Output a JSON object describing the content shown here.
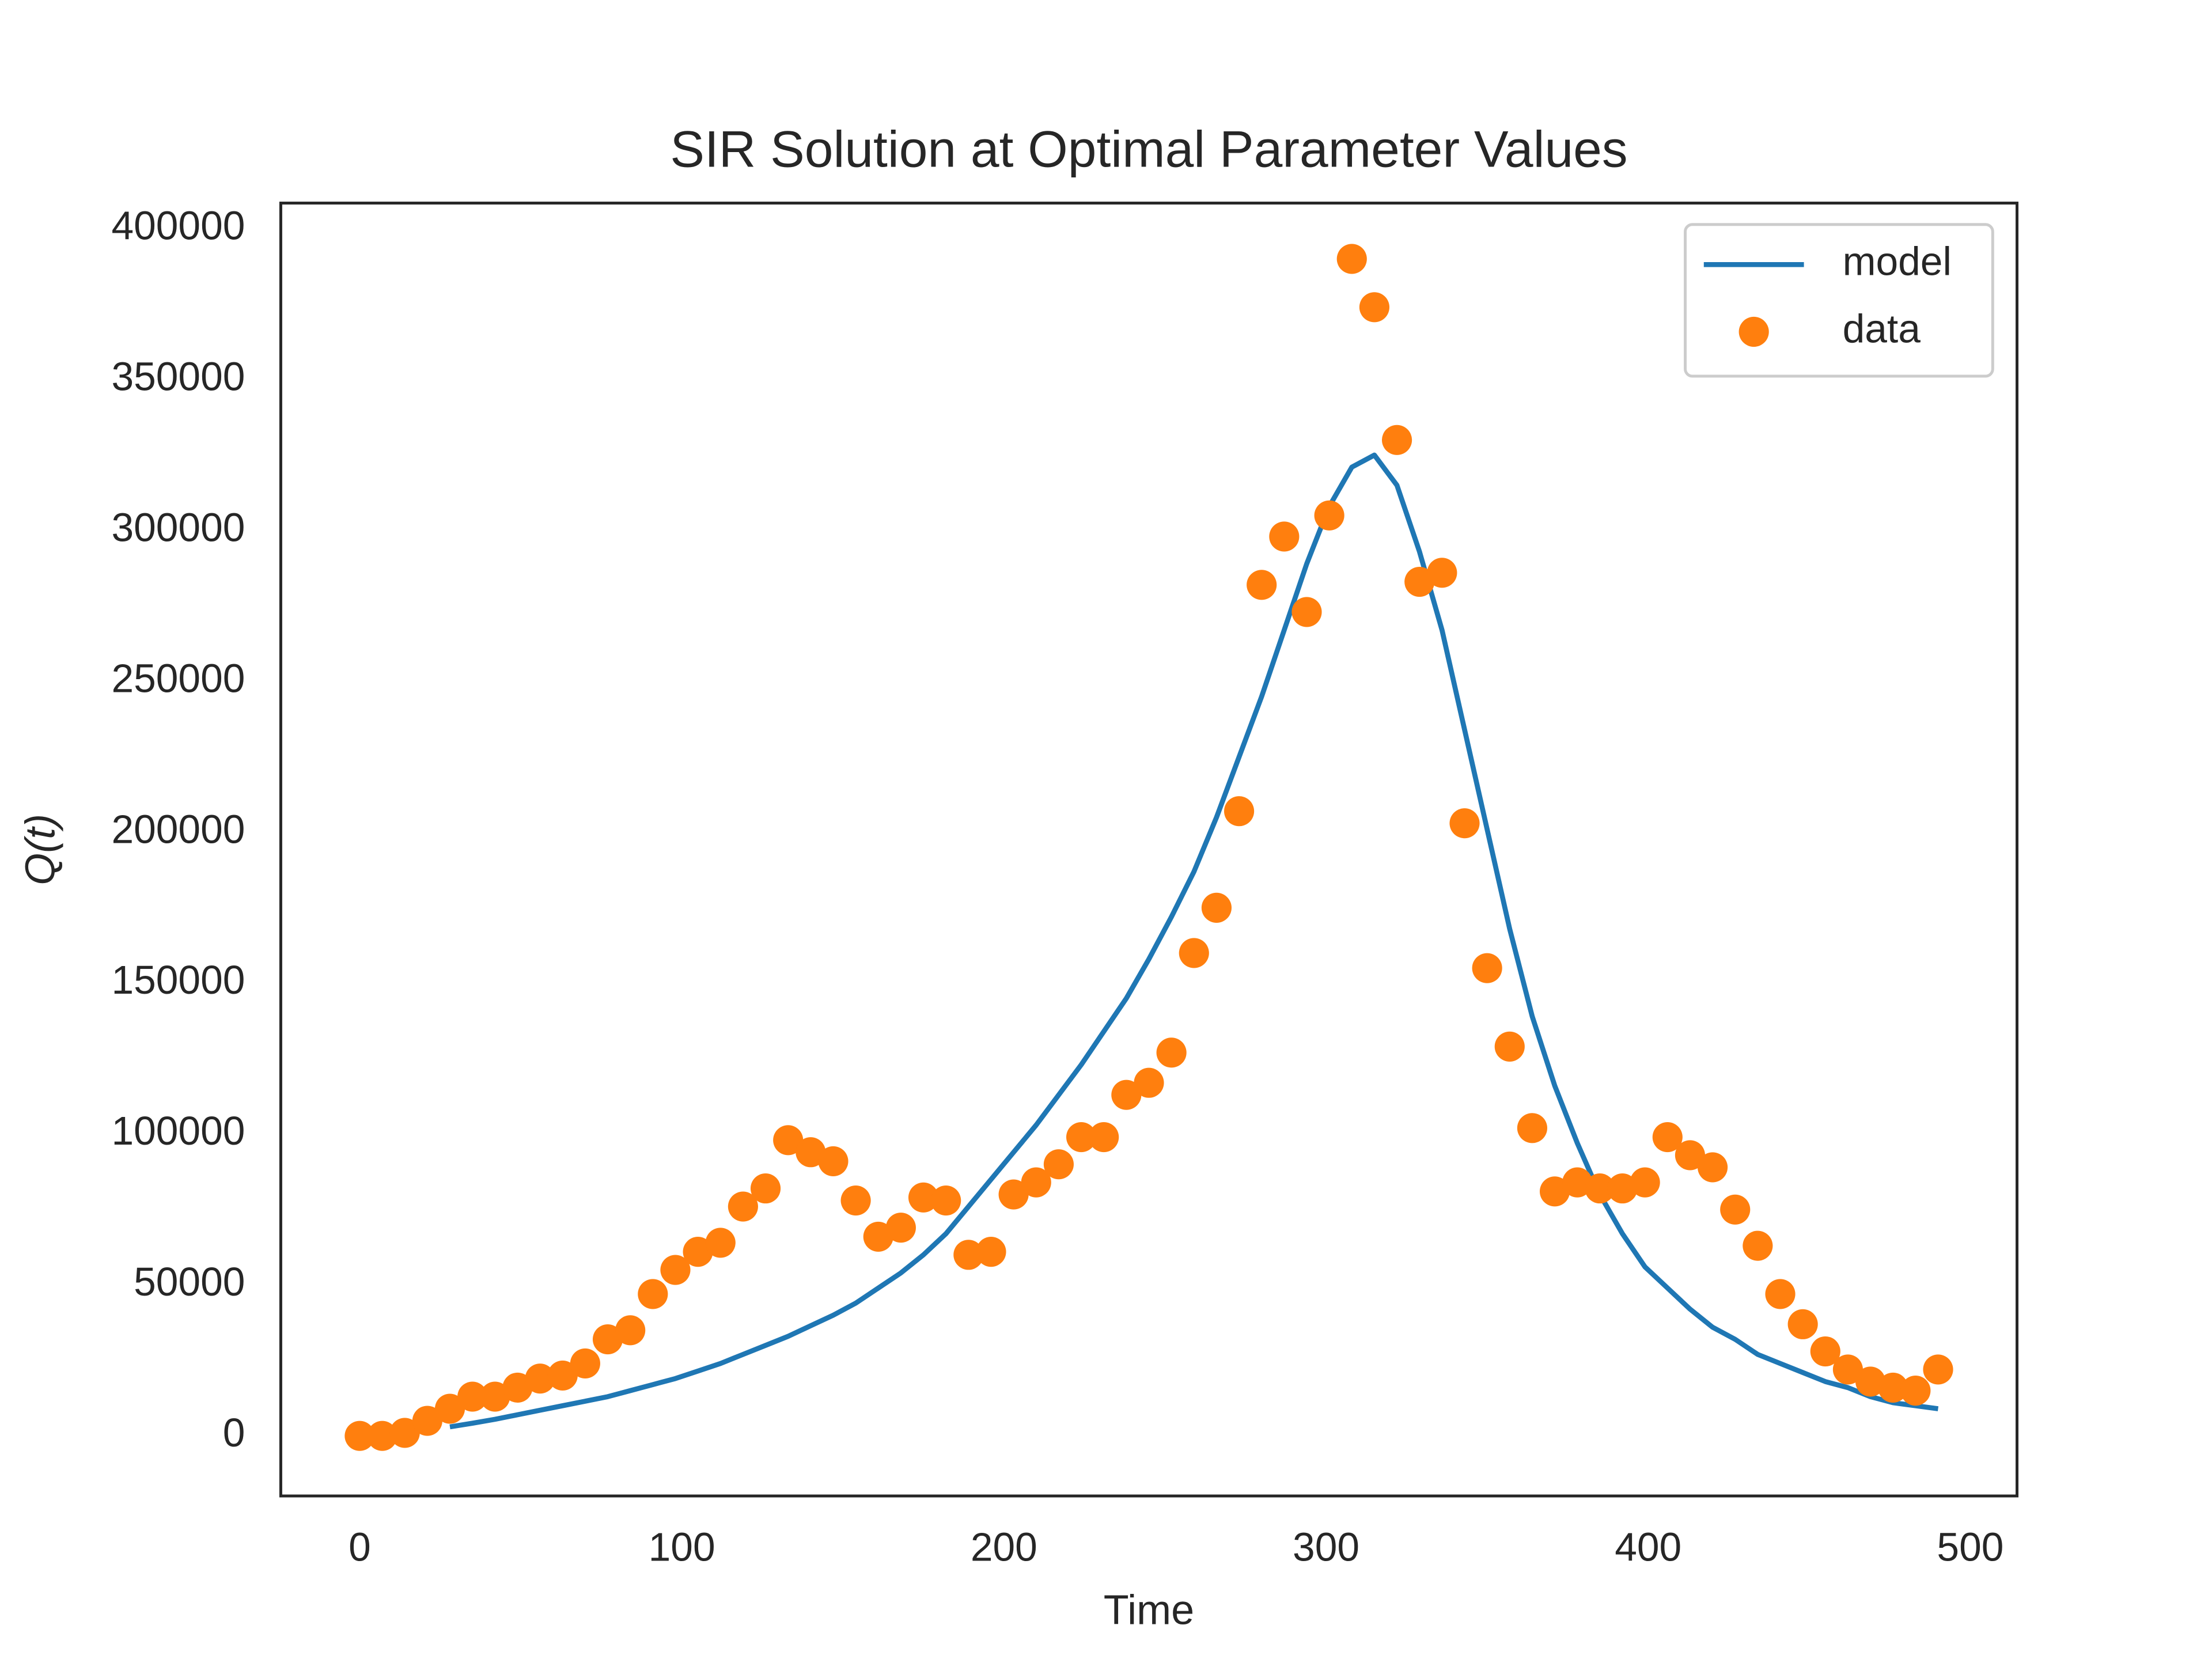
{
  "chart_data": {
    "type": "line",
    "title": "SIR Solution at Optimal Parameter Values",
    "x_label": "Time",
    "y_label": "Q(t)",
    "xlim": [
      -24.5,
      514.5
    ],
    "ylim": [
      -19900,
      408500
    ],
    "xticks": [
      0,
      100,
      200,
      300,
      400,
      500
    ],
    "yticks": [
      0,
      50000,
      100000,
      150000,
      200000,
      250000,
      300000,
      350000,
      400000
    ],
    "grid": false,
    "legend": "upper right",
    "series": [
      {
        "name": "model",
        "type": "line",
        "color": "#1f77b4",
        "x": [
          28,
          35,
          42,
          49,
          56,
          63,
          70,
          77,
          84,
          91,
          98,
          105,
          112,
          119,
          126,
          133,
          140,
          147,
          154,
          161,
          168,
          175,
          182,
          189,
          196,
          203,
          210,
          217,
          224,
          231,
          238,
          245,
          252,
          259,
          266,
          273,
          280,
          287,
          294,
          301,
          308,
          315,
          322,
          329,
          336,
          343,
          350,
          357,
          364,
          371,
          378,
          385,
          392,
          399,
          406,
          413,
          420,
          427,
          434,
          441,
          448,
          455,
          462,
          469,
          476,
          483,
          490
        ],
        "values": [
          3000,
          4200,
          5500,
          7000,
          8500,
          10000,
          11500,
          13000,
          15000,
          17000,
          19000,
          21500,
          24000,
          27000,
          30000,
          33000,
          36500,
          40000,
          44000,
          49000,
          54000,
          60000,
          67000,
          76000,
          85000,
          94000,
          103000,
          113000,
          123000,
          134000,
          145000,
          158000,
          172000,
          187000,
          205000,
          225000,
          245000,
          267000,
          289000,
          308000,
          321000,
          325000,
          315000,
          293000,
          267000,
          234000,
          201000,
          168000,
          139000,
          116000,
          97000,
          80000,
          67000,
          56000,
          49000,
          42000,
          36000,
          32000,
          27000,
          24000,
          21000,
          18000,
          16000,
          13000,
          11000,
          10000,
          9000
        ]
      },
      {
        "name": "data",
        "type": "scatter",
        "color": "#ff7f0e",
        "x": [
          0,
          7,
          14,
          21,
          28,
          35,
          42,
          49,
          56,
          63,
          70,
          77,
          84,
          91,
          98,
          105,
          112,
          119,
          126,
          133,
          140,
          147,
          154,
          161,
          168,
          175,
          182,
          189,
          196,
          203,
          210,
          217,
          224,
          231,
          238,
          245,
          252,
          259,
          266,
          273,
          280,
          287,
          294,
          301,
          308,
          315,
          322,
          329,
          336,
          343,
          350,
          357,
          364,
          371,
          378,
          385,
          392,
          399,
          406,
          413,
          420,
          427,
          434,
          441,
          448,
          455,
          462,
          469,
          476,
          483,
          490
        ],
        "values": [
          0,
          0,
          1000,
          5000,
          9000,
          13000,
          13000,
          16000,
          19000,
          20000,
          24000,
          32000,
          35000,
          47000,
          55000,
          61000,
          64000,
          76000,
          82000,
          98000,
          94000,
          91000,
          78000,
          66000,
          69000,
          79000,
          78000,
          60000,
          61000,
          80000,
          84000,
          90000,
          99000,
          99000,
          113000,
          117000,
          127000,
          160000,
          175000,
          207000,
          282000,
          298000,
          273000,
          305000,
          390000,
          374000,
          330000,
          283000,
          286000,
          203000,
          155000,
          129000,
          102000,
          81000,
          84000,
          82000,
          82000,
          84000,
          99000,
          93000,
          89000,
          75000,
          63000,
          47000,
          37000,
          28000,
          22000,
          18000,
          16000,
          15000,
          22000
        ]
      }
    ]
  }
}
